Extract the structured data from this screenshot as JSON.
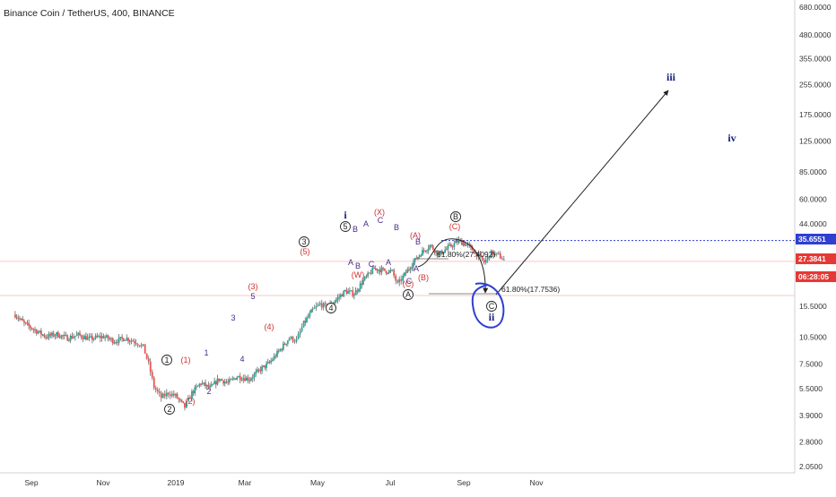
{
  "chart_data": {
    "type": "candlestick",
    "title": "Binance Coin / TetherUS, 400, BINANCE",
    "y_scale": "log",
    "ylim": [
      2.05,
      680
    ],
    "y_ticks": [
      "680.0000",
      "480.0000",
      "355.0000",
      "255.0000",
      "175.0000",
      "125.0000",
      "85.0000",
      "60.0000",
      "44.0000",
      "15.5000",
      "10.5000",
      "7.5000",
      "5.5000",
      "3.9000",
      "2.8000",
      "2.0500"
    ],
    "x_ticks": [
      "Sep",
      "Nov",
      "2019",
      "Mar",
      "May",
      "Jul",
      "Sep",
      "Nov"
    ],
    "price_tags": [
      {
        "label": "35.6551",
        "color": "#2f3fd0"
      },
      {
        "label": "27.3841",
        "color": "#e53935"
      },
      {
        "label": "06:28:05",
        "color": "#e53935"
      }
    ],
    "fib_notes": [
      {
        "text": "61.80%(27.4092)"
      },
      {
        "text": "61.80%(17.7536)"
      }
    ],
    "wave_labels": {
      "black_circled": [
        "1",
        "2",
        "3",
        "4",
        "5",
        "A",
        "B",
        "C"
      ],
      "red": [
        "(1)",
        "(2)",
        "(3)",
        "(4)",
        "(5)",
        "(W)",
        "(X)",
        "(A)",
        "(B)",
        "(C)",
        "(C)"
      ],
      "purple": [
        "1",
        "2",
        "3",
        "4",
        "5",
        "A",
        "B",
        "C",
        "A",
        "B",
        "C",
        "A",
        "B",
        "C",
        "A",
        "B"
      ],
      "blue": [
        "i",
        "ii",
        "iii",
        "iv"
      ]
    },
    "colors": {
      "up": "#26a69a",
      "down": "#ef5350",
      "wick": "#555555",
      "projection": "#2f3fd0"
    }
  }
}
